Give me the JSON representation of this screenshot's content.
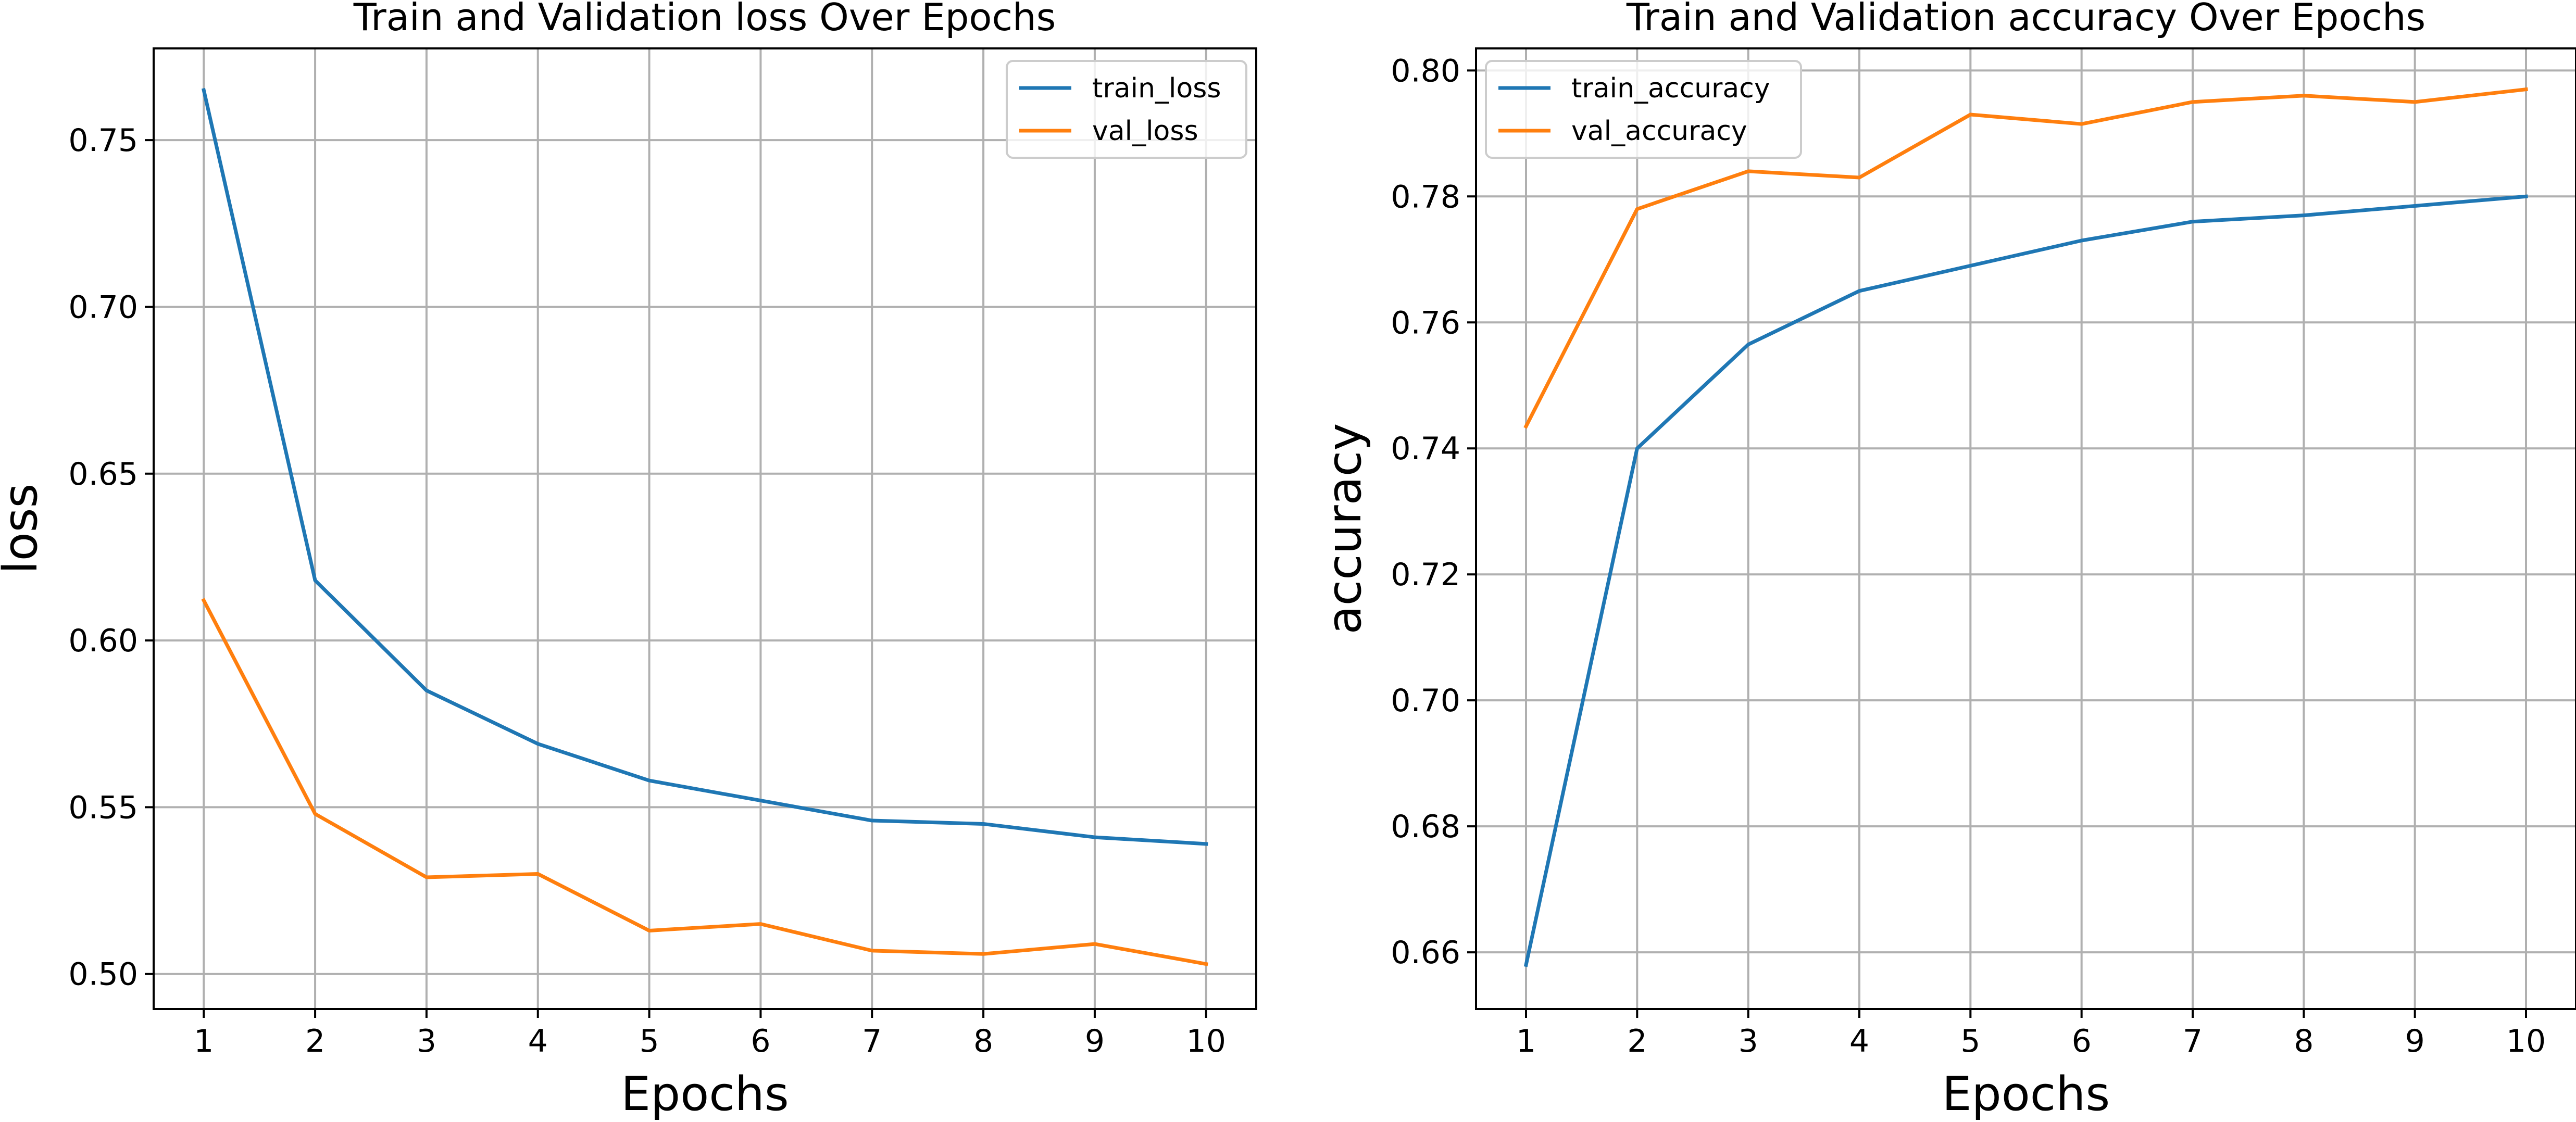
{
  "chart_data": [
    {
      "type": "line",
      "title": "Train and Validation loss Over Epochs",
      "xlabel": "Epochs",
      "ylabel": "loss",
      "x": [
        1,
        2,
        3,
        4,
        5,
        6,
        7,
        8,
        9,
        10
      ],
      "xticks": [
        "1",
        "2",
        "3",
        "4",
        "5",
        "6",
        "7",
        "8",
        "9",
        "10"
      ],
      "yticks": [
        "0.50",
        "0.55",
        "0.60",
        "0.65",
        "0.70",
        "0.75"
      ],
      "xlim": [
        0.55,
        10.45
      ],
      "ylim": [
        0.4895,
        0.7775
      ],
      "grid": true,
      "legend": "top-right",
      "series": [
        {
          "name": "train_loss",
          "color": "#1f77b4",
          "values": [
            0.765,
            0.618,
            0.585,
            0.569,
            0.558,
            0.552,
            0.546,
            0.545,
            0.541,
            0.539
          ]
        },
        {
          "name": "val_loss",
          "color": "#ff7f0e",
          "values": [
            0.612,
            0.548,
            0.529,
            0.53,
            0.513,
            0.515,
            0.507,
            0.506,
            0.509,
            0.503
          ]
        }
      ]
    },
    {
      "type": "line",
      "title": "Train and Validation accuracy Over Epochs",
      "xlabel": "Epochs",
      "ylabel": "accuracy",
      "x": [
        1,
        2,
        3,
        4,
        5,
        6,
        7,
        8,
        9,
        10
      ],
      "xticks": [
        "1",
        "2",
        "3",
        "4",
        "5",
        "6",
        "7",
        "8",
        "9",
        "10"
      ],
      "yticks": [
        "0.66",
        "0.68",
        "0.70",
        "0.72",
        "0.74",
        "0.76",
        "0.78",
        "0.80"
      ],
      "xlim": [
        0.55,
        10.45
      ],
      "ylim": [
        0.651,
        0.8035
      ],
      "grid": true,
      "legend": "top-left",
      "series": [
        {
          "name": "train_accuracy",
          "color": "#1f77b4",
          "values": [
            0.658,
            0.74,
            0.7565,
            0.765,
            0.769,
            0.773,
            0.776,
            0.777,
            0.7785,
            0.78
          ]
        },
        {
          "name": "val_accuracy",
          "color": "#ff7f0e",
          "values": [
            0.7435,
            0.778,
            0.784,
            0.783,
            0.793,
            0.7915,
            0.795,
            0.796,
            0.795,
            0.797
          ]
        }
      ]
    }
  ]
}
